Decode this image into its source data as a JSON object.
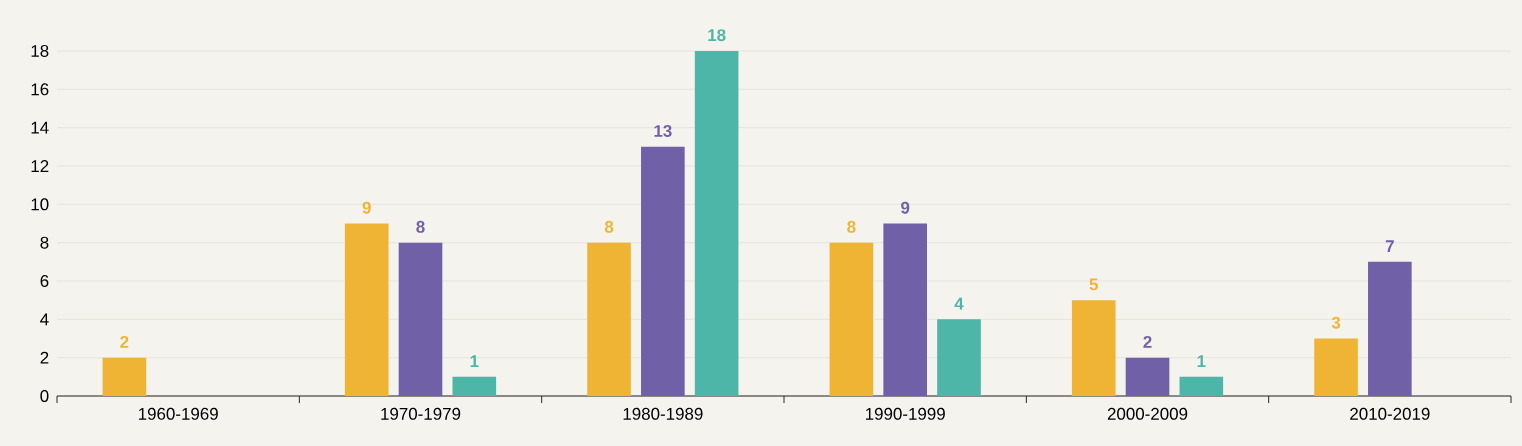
{
  "chart_data": {
    "type": "bar",
    "categories": [
      "1960-1969",
      "1970-1979",
      "1980-1989",
      "1990-1999",
      "2000-2009",
      "2010-2019"
    ],
    "series": [
      {
        "color": "#f0b434",
        "values": [
          2,
          9,
          8,
          8,
          5,
          3
        ]
      },
      {
        "color": "#7060a8",
        "values": [
          null,
          8,
          13,
          9,
          2,
          7
        ]
      },
      {
        "color": "#4db6a8",
        "values": [
          null,
          1,
          18,
          4,
          1,
          null
        ]
      }
    ],
    "ylim": [
      0,
      18
    ],
    "yticks": [
      0,
      2,
      4,
      6,
      8,
      10,
      12,
      14,
      16,
      18
    ],
    "grid": "y",
    "data_labels": true
  }
}
